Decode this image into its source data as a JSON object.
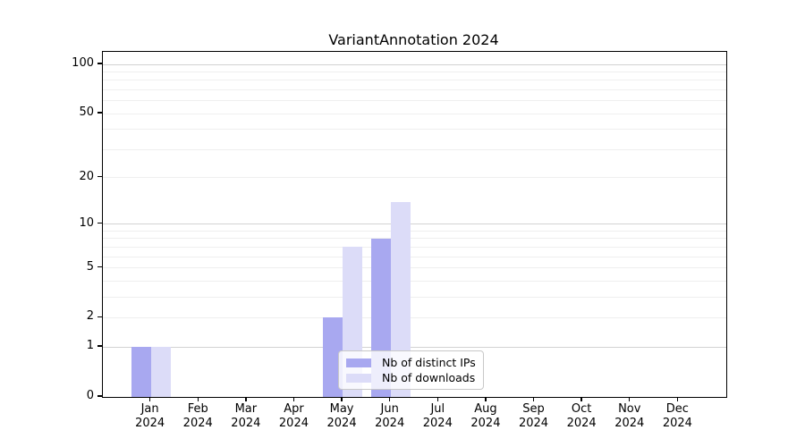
{
  "title": "VariantAnnotation 2024",
  "chart_data": {
    "type": "bar",
    "title": "VariantAnnotation 2024",
    "categories": [
      "Jan 2024",
      "Feb 2024",
      "Mar 2024",
      "Apr 2024",
      "May 2024",
      "Jun 2024",
      "Jul 2024",
      "Aug 2024",
      "Sep 2024",
      "Oct 2024",
      "Nov 2024",
      "Dec 2024"
    ],
    "x_tick_months": [
      "Jan",
      "Feb",
      "Mar",
      "Apr",
      "May",
      "Jun",
      "Jul",
      "Aug",
      "Sep",
      "Oct",
      "Nov",
      "Dec"
    ],
    "x_tick_year": "2024",
    "series": [
      {
        "name": "Nb of distinct IPs",
        "color": "#a8a8f0",
        "values": [
          1,
          0,
          0,
          0,
          2,
          8,
          0,
          0,
          0,
          0,
          0,
          0
        ]
      },
      {
        "name": "Nb of downloads",
        "color": "#dcdcf8",
        "values": [
          1,
          0,
          0,
          0,
          7,
          14,
          0,
          0,
          0,
          0,
          0,
          0
        ]
      }
    ],
    "xlabel": "",
    "ylabel": "",
    "y_scale": "log1p",
    "ylim": [
      0,
      100
    ],
    "y_ticks": [
      0,
      1,
      2,
      5,
      10,
      20,
      50,
      100
    ],
    "grid": {
      "major": [
        1,
        10,
        100
      ],
      "minor": [
        2,
        3,
        4,
        5,
        6,
        7,
        8,
        9,
        20,
        30,
        40,
        50,
        60,
        70,
        80,
        90
      ]
    },
    "legend_position": "lower center inside plot"
  },
  "colors": {
    "bar_distinct_ips": "#a8a8f0",
    "bar_downloads": "#dcdcf8",
    "grid_major": "#d2d2d2",
    "grid_minor": "#efefef",
    "axis": "#000000",
    "legend_border": "#c8c8c8",
    "background": "#ffffff"
  }
}
